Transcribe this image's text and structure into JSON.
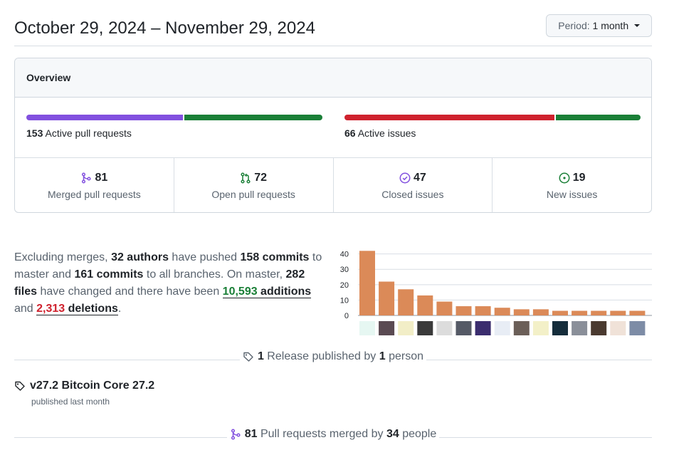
{
  "header": {
    "date_range": "October 29, 2024 – November 29, 2024",
    "period_label": "Period:",
    "period_value": "1 month"
  },
  "overview": {
    "title": "Overview",
    "pull_requests": {
      "count": "153",
      "label": "Active pull requests",
      "merged_share": 0.53,
      "open_share": 0.47,
      "merged_color": "#8250df",
      "open_color": "#1a7f37"
    },
    "issues": {
      "count": "66",
      "label": "Active issues",
      "closed_share": 0.71,
      "new_share": 0.29,
      "closed_color": "#cf222e",
      "new_color": "#1a7f37"
    },
    "stats": [
      {
        "icon": "git-merge-icon",
        "count": "81",
        "label": "Merged pull requests",
        "color": "#8250df"
      },
      {
        "icon": "git-pull-request-icon",
        "count": "72",
        "label": "Open pull requests",
        "color": "#1a7f37"
      },
      {
        "icon": "issue-closed-icon",
        "count": "47",
        "label": "Closed issues",
        "color": "#8250df"
      },
      {
        "icon": "issue-opened-icon",
        "count": "19",
        "label": "New issues",
        "color": "#1a7f37"
      }
    ]
  },
  "summary": {
    "t1": "Excluding merges, ",
    "authors": "32 authors",
    "t2": " have pushed ",
    "commits_master": "158 commits",
    "t3": " to master and ",
    "commits_all": "161 commits",
    "t4": " to all branches. On master, ",
    "files": "282 files",
    "t5": " have changed and there have been ",
    "additions_num": "10,593",
    "additions_word": " additions",
    "t6": " and ",
    "deletions_num": "2,313",
    "deletions_word": " deletions",
    "t7": "."
  },
  "chart_data": {
    "type": "bar",
    "values": [
      42,
      22,
      17,
      13,
      9,
      6,
      6,
      5,
      4,
      4,
      3,
      3,
      3,
      3,
      3
    ],
    "ylim": [
      0,
      44
    ],
    "yticks": [
      "0",
      "10",
      "20",
      "30",
      "40"
    ],
    "color": "#db8a58",
    "grid": true
  },
  "avatar_colors": [
    "#e6f7f2",
    "#5a4a52",
    "#f2eec7",
    "#3a3a3a",
    "#dcdcdc",
    "#555a66",
    "#3b2d6e",
    "#e8edf5",
    "#6b5f58",
    "#f3f0c8",
    "#152d3b",
    "#8a8f99",
    "#4a3a30",
    "#f0e2d8",
    "#7d8ca6"
  ],
  "releases_divider": {
    "count": "1",
    "text1": " Release published by ",
    "people": "1",
    "text2": " person"
  },
  "release": {
    "title": "v27.2 Bitcoin Core 27.2",
    "subtitle": "published last month"
  },
  "prs_divider": {
    "count": "81",
    "text1": " Pull requests merged by ",
    "people": "34",
    "text2": " people"
  }
}
